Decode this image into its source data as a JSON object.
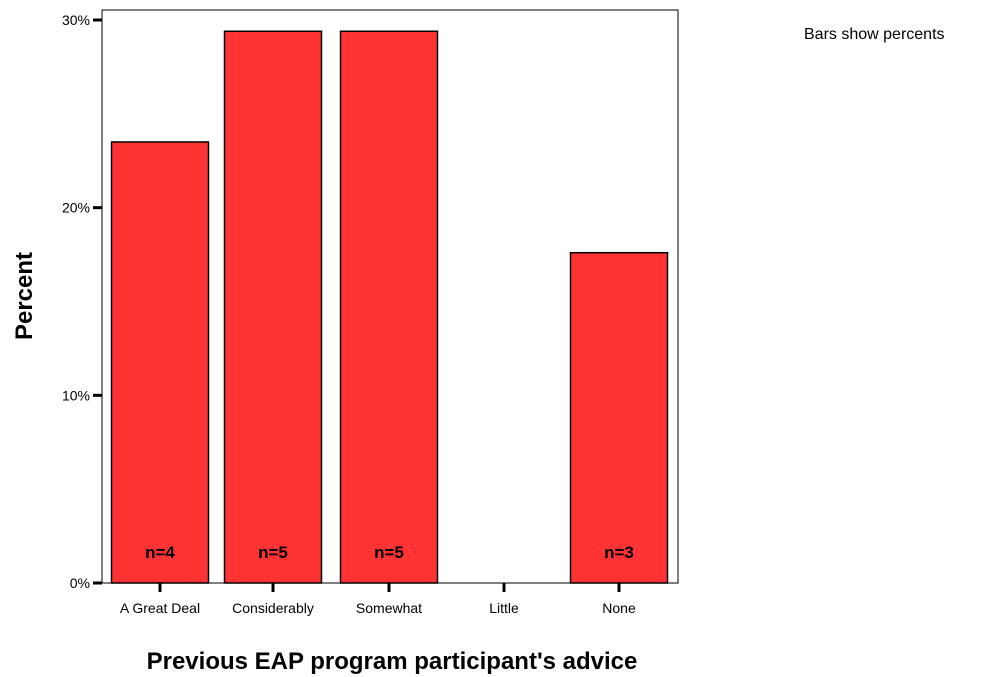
{
  "chart_data": {
    "type": "bar",
    "categories": [
      "A Great Deal",
      "Considerably",
      "Somewhat",
      "Little",
      "None"
    ],
    "values": [
      23.5,
      29.4,
      29.4,
      0,
      17.6
    ],
    "data_labels": [
      "n=4",
      "n=5",
      "n=5",
      "",
      "n=3"
    ],
    "xlabel": "Previous EAP program participant's advice",
    "ylabel": "Percent",
    "ylim": [
      0,
      30
    ],
    "yticks": [
      0,
      10,
      20,
      30
    ],
    "ytick_labels": [
      "0%",
      "10%",
      "20%",
      "30%"
    ],
    "grid": false,
    "note": "Bars show percents",
    "colors": {
      "bar": "#ff3333",
      "bar_border": "#000000"
    }
  }
}
